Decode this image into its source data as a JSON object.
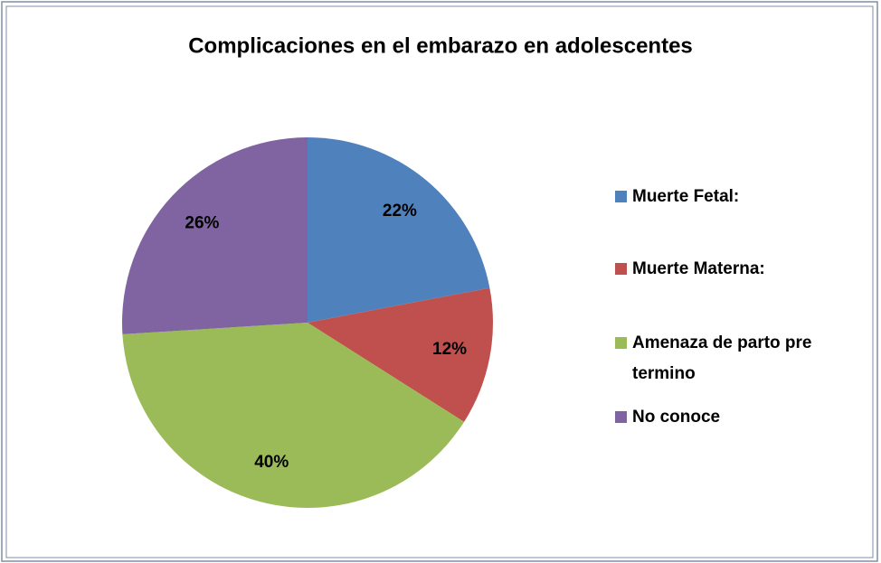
{
  "chart_data": {
    "type": "pie",
    "title": "Complicaciones en  el embarazo en adolescentes",
    "categories": [
      "Muerte Fetal:",
      "Muerte Materna:",
      "Amenaza de parto pre termino",
      "No conoce"
    ],
    "values": [
      22,
      12,
      40,
      26
    ],
    "value_labels": [
      "22%",
      "12%",
      "40%",
      "26%"
    ],
    "colors": [
      "#4F81BD",
      "#C0504D",
      "#9BBB59",
      "#8064A2"
    ],
    "legend": "right"
  }
}
